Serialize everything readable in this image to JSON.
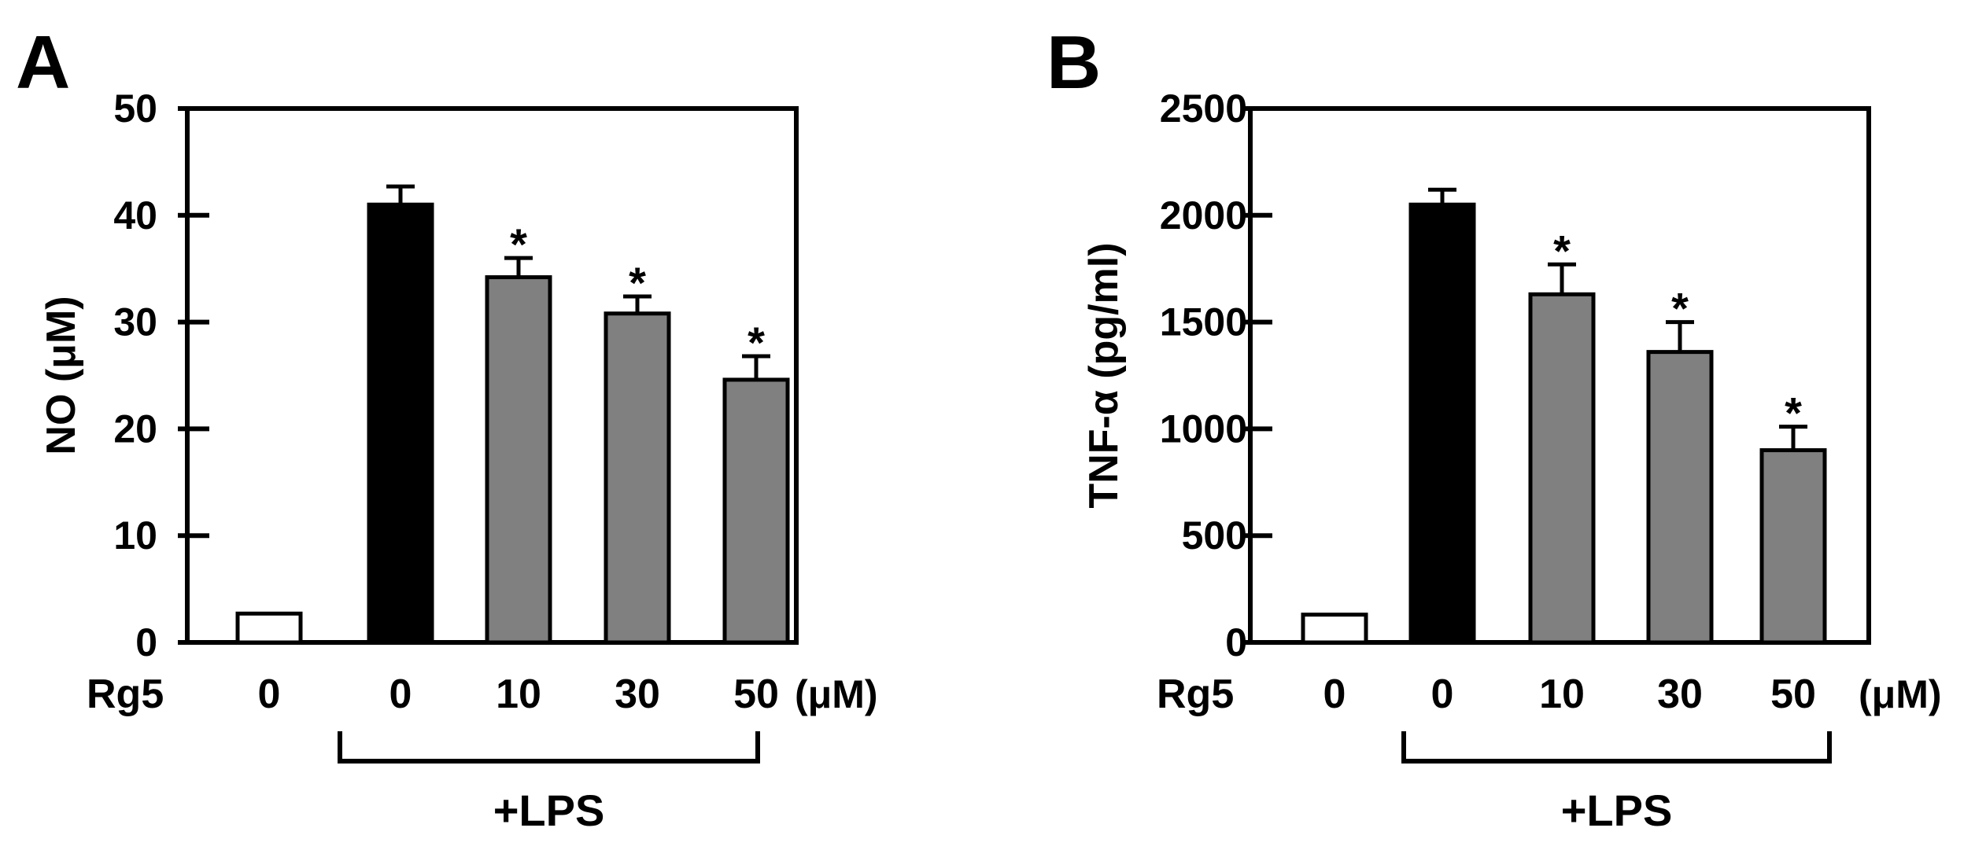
{
  "colors": {
    "control_bar": "#ffffff",
    "lps_bar": "#000000",
    "rg5_bar": "#808080",
    "stroke": "#000000"
  },
  "chart_data": [
    {
      "type": "bar",
      "panel": "A",
      "ylabel": "NO (μM)",
      "ylim": [
        0,
        50
      ],
      "yticks": [
        0,
        10,
        20,
        30,
        40,
        50
      ],
      "ytick_labels": [
        "0",
        "10",
        "20",
        "30",
        "40",
        "50"
      ],
      "row_label": "Rg5",
      "categories": [
        "0",
        "0",
        "10",
        "30",
        "50"
      ],
      "unit": "(μM)",
      "group_label": "+LPS",
      "group_span": [
        1,
        4
      ],
      "values": [
        2.7,
        41,
        34.2,
        30.8,
        24.6
      ],
      "errors": [
        0,
        1.7,
        1.8,
        1.6,
        2.2
      ],
      "significance": [
        "",
        "",
        "*",
        "*",
        "*"
      ],
      "bar_colors": [
        "#ffffff",
        "#000000",
        "#808080",
        "#808080",
        "#808080"
      ],
      "grid": false
    },
    {
      "type": "bar",
      "panel": "B",
      "ylabel": "TNF-α (pg/ml)",
      "ylim": [
        0,
        2500
      ],
      "yticks": [
        0,
        500,
        1000,
        1500,
        2000,
        2500
      ],
      "ytick_labels": [
        "0",
        "500",
        "1000",
        "1500",
        "2000",
        "2500"
      ],
      "row_label": "Rg5",
      "categories": [
        "0",
        "0",
        "10",
        "30",
        "50"
      ],
      "unit": "(μM)",
      "group_label": "+LPS",
      "group_span": [
        1,
        4
      ],
      "values": [
        130,
        2050,
        1630,
        1360,
        900
      ],
      "errors": [
        0,
        70,
        140,
        140,
        110
      ],
      "significance": [
        "",
        "",
        "*",
        "*",
        "*"
      ],
      "bar_colors": [
        "#ffffff",
        "#000000",
        "#808080",
        "#808080",
        "#808080"
      ],
      "grid": false
    }
  ]
}
